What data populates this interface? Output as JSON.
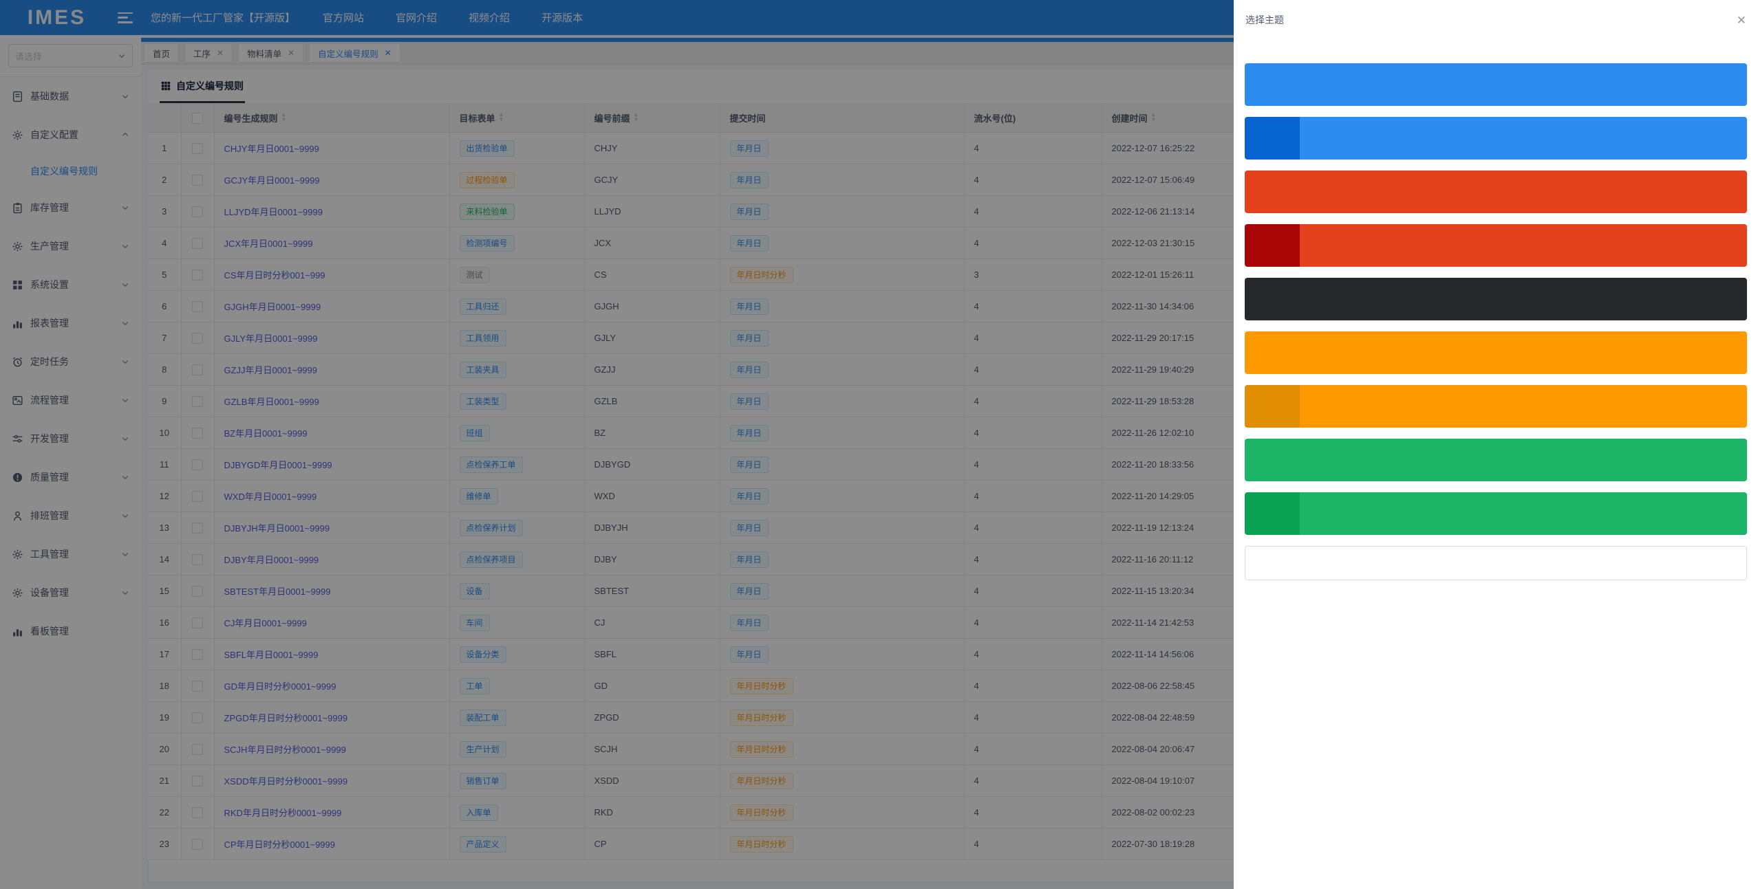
{
  "navbar": {
    "logo": "IMES",
    "title": "您的新一代工厂管家【开源版】",
    "links": [
      {
        "key": "official-site",
        "label": "官方网站"
      },
      {
        "key": "site-intro",
        "label": "官网介绍"
      },
      {
        "key": "video-intro",
        "label": "视频介绍"
      },
      {
        "key": "open-source-version",
        "label": "开源版本"
      }
    ]
  },
  "sidebar": {
    "select_placeholder": "请选择",
    "menu": [
      {
        "key": "base-data",
        "label": "基础数据",
        "icon": "journal-icon",
        "expandable": true
      },
      {
        "key": "custom-config",
        "label": "自定义配置",
        "icon": "gear-icon",
        "expandable": true,
        "expanded": true,
        "children": [
          {
            "key": "custom-numbering-rule",
            "label": "自定义编号规则",
            "active": true
          }
        ]
      },
      {
        "key": "inventory",
        "label": "库存管理",
        "icon": "clipboard-icon",
        "expandable": true
      },
      {
        "key": "production",
        "label": "生产管理",
        "icon": "gear-icon",
        "expandable": true
      },
      {
        "key": "system-settings",
        "label": "系统设置",
        "icon": "grid-icon",
        "expandable": true
      },
      {
        "key": "reports",
        "label": "报表管理",
        "icon": "bar-chart-icon",
        "expandable": true
      },
      {
        "key": "scheduled-tasks",
        "label": "定时任务",
        "icon": "alarm-clock-icon",
        "expandable": true
      },
      {
        "key": "process-mgmt",
        "label": "流程管理",
        "icon": "flow-icon",
        "expandable": true
      },
      {
        "key": "development",
        "label": "开发管理",
        "icon": "sliders-icon",
        "expandable": true
      },
      {
        "key": "quality",
        "label": "质量管理",
        "icon": "alert-circle-icon",
        "expandable": true
      },
      {
        "key": "shift",
        "label": "排班管理",
        "icon": "person-icon",
        "expandable": true
      },
      {
        "key": "tools",
        "label": "工具管理",
        "icon": "gear-icon",
        "expandable": true
      },
      {
        "key": "equipment",
        "label": "设备管理",
        "icon": "gear-icon",
        "expandable": true
      },
      {
        "key": "dashboard",
        "label": "看板管理",
        "icon": "bar-chart-icon",
        "expandable": false
      }
    ]
  },
  "tabs": [
    {
      "key": "home",
      "label": "首页",
      "closable": false,
      "active": false
    },
    {
      "key": "process",
      "label": "工序",
      "closable": true,
      "active": false
    },
    {
      "key": "bom",
      "label": "物料清单",
      "closable": true,
      "active": false
    },
    {
      "key": "custom-numbering-rule",
      "label": "自定义编号规则",
      "closable": true,
      "active": true
    }
  ],
  "page": {
    "title": "自定义编号规则"
  },
  "table": {
    "headers": [
      {
        "key": "index",
        "label": "",
        "sortable": false
      },
      {
        "key": "select",
        "label": "",
        "checkbox": true,
        "sortable": false
      },
      {
        "key": "rule",
        "label": "编号生成规则",
        "sortable": true
      },
      {
        "key": "target",
        "label": "目标表单",
        "sortable": true
      },
      {
        "key": "prefix",
        "label": "编号前缀",
        "sortable": true
      },
      {
        "key": "submit",
        "label": "提交时间",
        "sortable": false
      },
      {
        "key": "serial",
        "label": "流水号(位)",
        "sortable": false
      },
      {
        "key": "created",
        "label": "创建时间",
        "sortable": true
      }
    ],
    "rows": [
      {
        "num": "1",
        "rule": "CHJY年月日0001~9999",
        "target": {
          "text": "出货检验单",
          "variant": "blue"
        },
        "prefix": "CHJY",
        "submit": {
          "text": "年月日",
          "variant": "blue"
        },
        "serial": "4",
        "created": "2022-12-07 16:25:22"
      },
      {
        "num": "2",
        "rule": "GCJY年月日0001~9999",
        "target": {
          "text": "过程检验单",
          "variant": "orange"
        },
        "prefix": "GCJY",
        "submit": {
          "text": "年月日",
          "variant": "blue"
        },
        "serial": "4",
        "created": "2022-12-07 15:06:49"
      },
      {
        "num": "3",
        "rule": "LLJYD年月日0001~9999",
        "target": {
          "text": "来料检验单",
          "variant": "green"
        },
        "prefix": "LLJYD",
        "submit": {
          "text": "年月日",
          "variant": "blue"
        },
        "serial": "4",
        "created": "2022-12-06 21:13:14"
      },
      {
        "num": "4",
        "rule": "JCX年月日0001~9999",
        "target": {
          "text": "检测项编号",
          "variant": "blue"
        },
        "prefix": "JCX",
        "submit": {
          "text": "年月日",
          "variant": "blue"
        },
        "serial": "4",
        "created": "2022-12-03 21:30:15"
      },
      {
        "num": "5",
        "rule": "CS年月日时分秒001~999",
        "target": {
          "text": "测试",
          "variant": "gray"
        },
        "prefix": "CS",
        "submit": {
          "text": "年月日时分秒",
          "variant": "orange"
        },
        "serial": "3",
        "created": "2022-12-01 15:26:11"
      },
      {
        "num": "6",
        "rule": "GJGH年月日0001~9999",
        "target": {
          "text": "工具归还",
          "variant": "blue"
        },
        "prefix": "GJGH",
        "submit": {
          "text": "年月日",
          "variant": "blue"
        },
        "serial": "4",
        "created": "2022-11-30 14:34:06"
      },
      {
        "num": "7",
        "rule": "GJLY年月日0001~9999",
        "target": {
          "text": "工具领用",
          "variant": "blue"
        },
        "prefix": "GJLY",
        "submit": {
          "text": "年月日",
          "variant": "blue"
        },
        "serial": "4",
        "created": "2022-11-29 20:17:15"
      },
      {
        "num": "8",
        "rule": "GZJJ年月日0001~9999",
        "target": {
          "text": "工装夹具",
          "variant": "blue"
        },
        "prefix": "GZJJ",
        "submit": {
          "text": "年月日",
          "variant": "blue"
        },
        "serial": "4",
        "created": "2022-11-29 19:40:29"
      },
      {
        "num": "9",
        "rule": "GZLB年月日0001~9999",
        "target": {
          "text": "工装类型",
          "variant": "blue"
        },
        "prefix": "GZLB",
        "submit": {
          "text": "年月日",
          "variant": "blue"
        },
        "serial": "4",
        "created": "2022-11-29 18:53:28"
      },
      {
        "num": "10",
        "rule": "BZ年月日0001~9999",
        "target": {
          "text": "班组",
          "variant": "blue"
        },
        "prefix": "BZ",
        "submit": {
          "text": "年月日",
          "variant": "blue"
        },
        "serial": "4",
        "created": "2022-11-26 12:02:10"
      },
      {
        "num": "11",
        "rule": "DJBYGD年月日0001~9999",
        "target": {
          "text": "点检保养工单",
          "variant": "blue"
        },
        "prefix": "DJBYGD",
        "submit": {
          "text": "年月日",
          "variant": "blue"
        },
        "serial": "4",
        "created": "2022-11-20 18:33:56"
      },
      {
        "num": "12",
        "rule": "WXD年月日0001~9999",
        "target": {
          "text": "维修单",
          "variant": "blue"
        },
        "prefix": "WXD",
        "submit": {
          "text": "年月日",
          "variant": "blue"
        },
        "serial": "4",
        "created": "2022-11-20 14:29:05"
      },
      {
        "num": "13",
        "rule": "DJBYJH年月日0001~9999",
        "target": {
          "text": "点检保养计划",
          "variant": "blue"
        },
        "prefix": "DJBYJH",
        "submit": {
          "text": "年月日",
          "variant": "blue"
        },
        "serial": "4",
        "created": "2022-11-19 12:13:24"
      },
      {
        "num": "14",
        "rule": "DJBY年月日0001~9999",
        "target": {
          "text": "点检保养项目",
          "variant": "blue"
        },
        "prefix": "DJBY",
        "submit": {
          "text": "年月日",
          "variant": "blue"
        },
        "serial": "4",
        "created": "2022-11-16 20:11:12"
      },
      {
        "num": "15",
        "rule": "SBTEST年月日0001~9999",
        "target": {
          "text": "设备",
          "variant": "blue"
        },
        "prefix": "SBTEST",
        "submit": {
          "text": "年月日",
          "variant": "blue"
        },
        "serial": "4",
        "created": "2022-11-15 13:20:34"
      },
      {
        "num": "16",
        "rule": "CJ年月日0001~9999",
        "target": {
          "text": "车间",
          "variant": "blue"
        },
        "prefix": "CJ",
        "submit": {
          "text": "年月日",
          "variant": "blue"
        },
        "serial": "4",
        "created": "2022-11-14 21:42:53"
      },
      {
        "num": "17",
        "rule": "SBFL年月日0001~9999",
        "target": {
          "text": "设备分类",
          "variant": "blue"
        },
        "prefix": "SBFL",
        "submit": {
          "text": "年月日",
          "variant": "blue"
        },
        "serial": "4",
        "created": "2022-11-14 14:56:06"
      },
      {
        "num": "18",
        "rule": "GD年月日时分秒0001~9999",
        "target": {
          "text": "工单",
          "variant": "blue"
        },
        "prefix": "GD",
        "submit": {
          "text": "年月日时分秒",
          "variant": "orange"
        },
        "serial": "4",
        "created": "2022-08-06 22:58:45"
      },
      {
        "num": "19",
        "rule": "ZPGD年月日时分秒0001~9999",
        "target": {
          "text": "装配工单",
          "variant": "blue"
        },
        "prefix": "ZPGD",
        "submit": {
          "text": "年月日时分秒",
          "variant": "orange"
        },
        "serial": "4",
        "created": "2022-08-04 22:48:59"
      },
      {
        "num": "20",
        "rule": "SCJH年月日时分秒0001~9999",
        "target": {
          "text": "生产计划",
          "variant": "blue"
        },
        "prefix": "SCJH",
        "submit": {
          "text": "年月日时分秒",
          "variant": "orange"
        },
        "serial": "4",
        "created": "2022-08-04 20:06:47"
      },
      {
        "num": "21",
        "rule": "XSDD年月日时分秒0001~9999",
        "target": {
          "text": "销售订单",
          "variant": "blue"
        },
        "prefix": "XSDD",
        "submit": {
          "text": "年月日时分秒",
          "variant": "orange"
        },
        "serial": "4",
        "created": "2022-08-04 19:10:07"
      },
      {
        "num": "22",
        "rule": "RKD年月日时分秒0001~9999",
        "target": {
          "text": "入库单",
          "variant": "blue"
        },
        "prefix": "RKD",
        "submit": {
          "text": "年月日时分秒",
          "variant": "orange"
        },
        "serial": "4",
        "created": "2022-08-02 00:02:23"
      },
      {
        "num": "23",
        "rule": "CP年月日时分秒0001~9999",
        "target": {
          "text": "产品定义",
          "variant": "blue"
        },
        "prefix": "CP",
        "submit": {
          "text": "年月日时分秒",
          "variant": "orange"
        },
        "serial": "4",
        "created": "2022-07-30 18:19:28"
      }
    ]
  },
  "drawer": {
    "title": "选择主题",
    "close_icon": "✕",
    "themes": [
      {
        "name": "blue",
        "solid": "#2d8cf0"
      },
      {
        "name": "blue-dark-accent",
        "left": "#0663cf",
        "main": "#2d8cf0"
      },
      {
        "name": "red",
        "solid": "#e3421d"
      },
      {
        "name": "red-dark-accent",
        "left": "#a80506",
        "main": "#e3421d"
      },
      {
        "name": "dark",
        "solid": "#26282b"
      },
      {
        "name": "amber",
        "solid": "#ff9900"
      },
      {
        "name": "amber-dark-accent",
        "left": "#e18e04",
        "main": "#ff9900"
      },
      {
        "name": "green",
        "solid": "#1cb466"
      },
      {
        "name": "green-dark-accent",
        "left": "#0aa354",
        "main": "#1cb466"
      },
      {
        "name": "white",
        "solid": "#ffffff",
        "bordered": true
      }
    ]
  },
  "colors": {
    "primary": "#2d8cf0",
    "navbar_bg": "#2d8cf0",
    "link": "#525bda",
    "text": "#515a6e",
    "overlay": "rgba(0,0,0,0.45)"
  }
}
